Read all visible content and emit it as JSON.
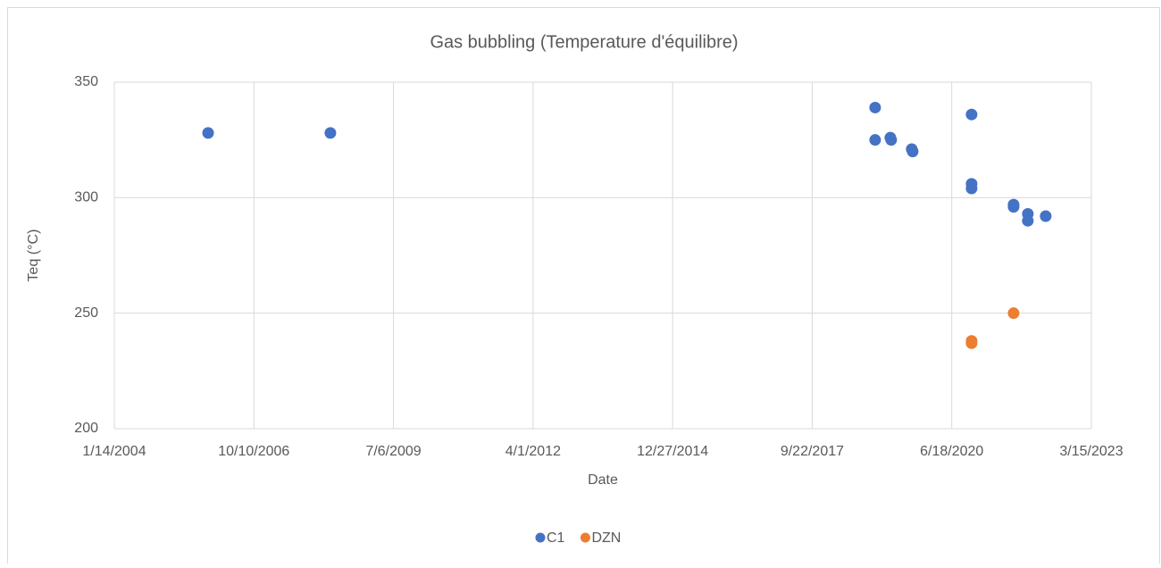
{
  "chart_data": {
    "type": "scatter",
    "title": "Gas bubbling (Temperature d'équilibre)",
    "x_label": "Date",
    "y_label": "Teq (°C)",
    "xlim": [
      38000,
      45000
    ],
    "xticks": [
      {
        "value": 38000,
        "label": "1/14/2004"
      },
      {
        "value": 39000,
        "label": "10/10/2006"
      },
      {
        "value": 40000,
        "label": "7/6/2009"
      },
      {
        "value": 41000,
        "label": "4/1/2012"
      },
      {
        "value": 42000,
        "label": "12/27/2014"
      },
      {
        "value": 43000,
        "label": "9/22/2017"
      },
      {
        "value": 44000,
        "label": "6/18/2020"
      },
      {
        "value": 45000,
        "label": "3/15/2023"
      }
    ],
    "ylim": [
      200,
      350
    ],
    "yticks": [
      200,
      250,
      300,
      350
    ],
    "grid": true,
    "legend": "bottom",
    "series": [
      {
        "name": "C1",
        "color": "#4472c4",
        "x": [
          38672,
          39548,
          43451,
          43451,
          43560,
          43566,
          43713,
          43720,
          44142,
          44142,
          44142,
          44443,
          44443,
          44545,
          44545,
          44673
        ],
        "values": [
          328,
          328,
          339,
          325,
          326,
          325,
          321,
          320,
          336,
          306,
          304,
          297,
          296,
          293,
          290,
          292
        ]
      },
      {
        "name": "DZN",
        "color": "#ed7d31",
        "x": [
          44142,
          44142,
          44443
        ],
        "values": [
          238,
          237,
          250
        ]
      }
    ]
  }
}
